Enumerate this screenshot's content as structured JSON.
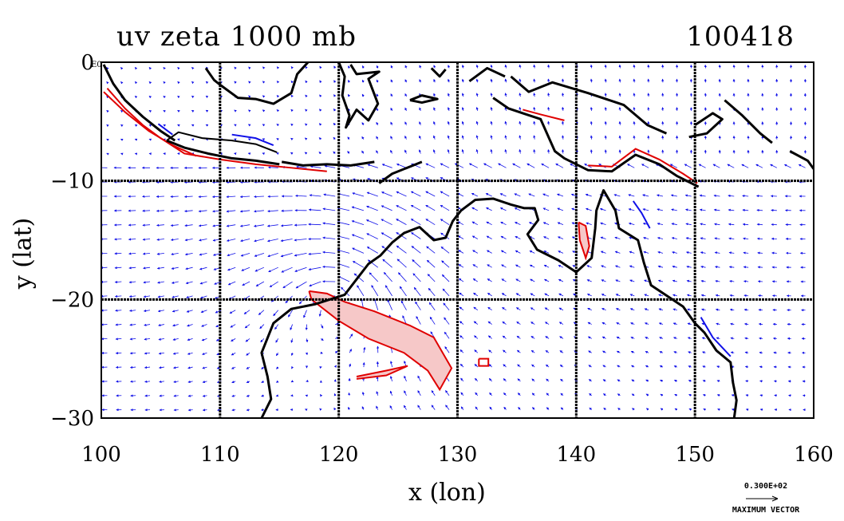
{
  "title": {
    "left": "uv zeta 1000 mb",
    "right": "100418"
  },
  "axes": {
    "xlabel": "x (lon)",
    "ylabel": "y (lat)",
    "xticks": [
      "100",
      "110",
      "120",
      "130",
      "140",
      "150",
      "160"
    ],
    "yticks": [
      "0",
      "−10",
      "−20",
      "−30"
    ],
    "xrange": [
      100,
      160
    ],
    "yrange": [
      -30,
      0
    ],
    "y_exponent_label": "E0"
  },
  "reference_vector": {
    "value": "0.300E+02",
    "label": "MAXIMUM VECTOR"
  },
  "colors": {
    "coast": "#000000",
    "vectors": "#1010e8",
    "positive": "#e00000",
    "negative": "#1010e8",
    "fill": "#f6c8c8",
    "grid": "#000000"
  }
}
